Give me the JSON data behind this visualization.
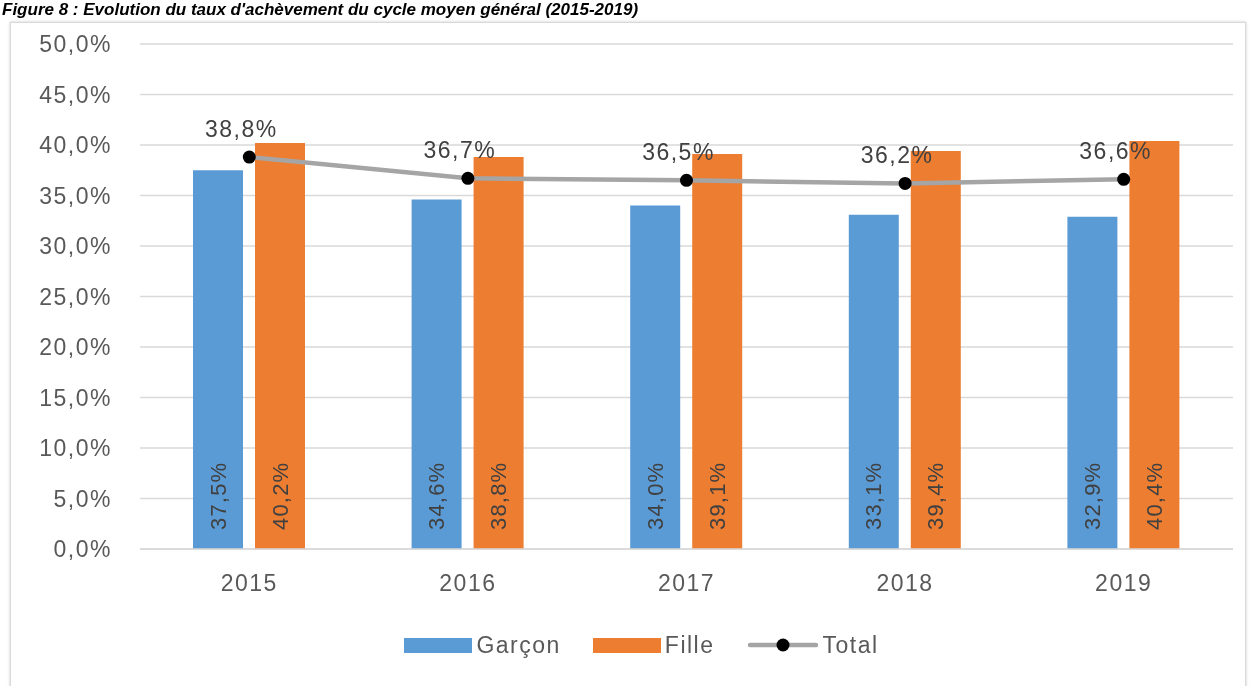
{
  "chart_data": {
    "type": "bar",
    "title": "Figure 8 : Evolution du taux d'achèvement du cycle moyen général (2015-2019)",
    "categories": [
      "2015",
      "2016",
      "2017",
      "2018",
      "2019"
    ],
    "series": [
      {
        "name": "Garçon",
        "color": "#5b9bd5",
        "values": [
          37.5,
          34.6,
          34.0,
          33.1,
          32.9
        ],
        "value_labels": [
          "37,5%",
          "34,6%",
          "34,0%",
          "33,1%",
          "32,9%"
        ]
      },
      {
        "name": "Fille",
        "color": "#ed7d31",
        "values": [
          40.2,
          38.8,
          39.1,
          39.4,
          40.4
        ],
        "value_labels": [
          "40,2%",
          "38,8%",
          "39,1%",
          "39,4%",
          "40,4%"
        ]
      },
      {
        "name": "Total",
        "type": "line",
        "color": "#a5a5a5",
        "marker": "circle",
        "values": [
          38.8,
          36.7,
          36.5,
          36.2,
          36.6
        ],
        "value_labels": [
          "38,8%",
          "36,7%",
          "36,5%",
          "36,2%",
          "36,6%"
        ]
      }
    ],
    "ylim": [
      0,
      50
    ],
    "yticks": [
      {
        "value": 0,
        "label": "0,0%"
      },
      {
        "value": 5,
        "label": "5,0%"
      },
      {
        "value": 10,
        "label": "10,0%"
      },
      {
        "value": 15,
        "label": "15,0%"
      },
      {
        "value": 20,
        "label": "20,0%"
      },
      {
        "value": 25,
        "label": "25,0%"
      },
      {
        "value": 30,
        "label": "30,0%"
      },
      {
        "value": 35,
        "label": "35,0%"
      },
      {
        "value": 40,
        "label": "40,0%"
      },
      {
        "value": 45,
        "label": "45,0%"
      },
      {
        "value": 50,
        "label": "50,0%"
      }
    ],
    "grid": "y",
    "legend": "bottom"
  }
}
